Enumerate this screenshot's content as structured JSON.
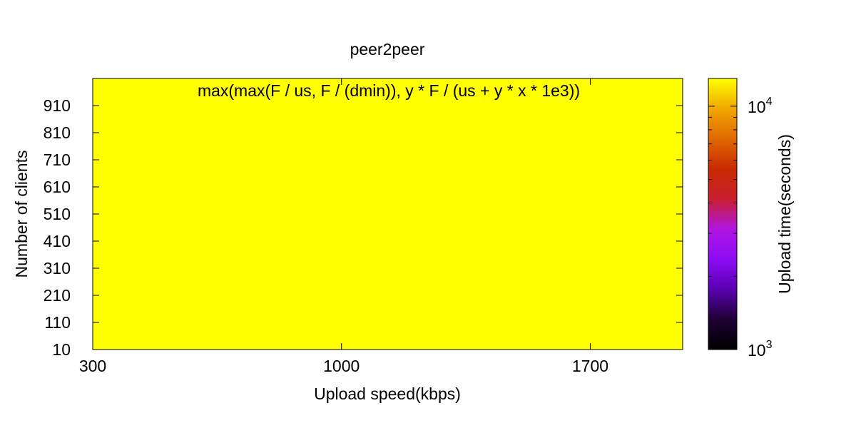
{
  "chart_data": {
    "type": "heatmap",
    "title": "peer2peer",
    "annotation": "max(max(F / us, F / (dmin)), y * F / (us + y * x * 1e3))",
    "xlabel": "Upload speed(kbps)",
    "ylabel": "Number of clients",
    "xlim": [
      300,
      1960
    ],
    "ylim": [
      10,
      1010
    ],
    "x_ticks": [
      300,
      1000,
      1700
    ],
    "y_ticks": [
      10,
      110,
      210,
      310,
      410,
      510,
      610,
      710,
      810,
      910
    ],
    "colorbar": {
      "label": "Upload time(seconds)",
      "scale": "log",
      "range": [
        1000,
        13000
      ],
      "ticks": [
        {
          "value": 1000,
          "base": "10",
          "exp": "3"
        },
        {
          "value": 10000,
          "base": "10",
          "exp": "4"
        }
      ],
      "minor_ticks": [
        2000,
        3000,
        4000,
        5000,
        6000,
        7000,
        8000,
        9000
      ],
      "palette": [
        "#000000",
        "#1e0033",
        "#5a00b0",
        "#8c0cf5",
        "#b015e0",
        "#c81e2e",
        "#c82a00",
        "#e06800",
        "#f0a800",
        "#ffff00"
      ]
    }
  }
}
